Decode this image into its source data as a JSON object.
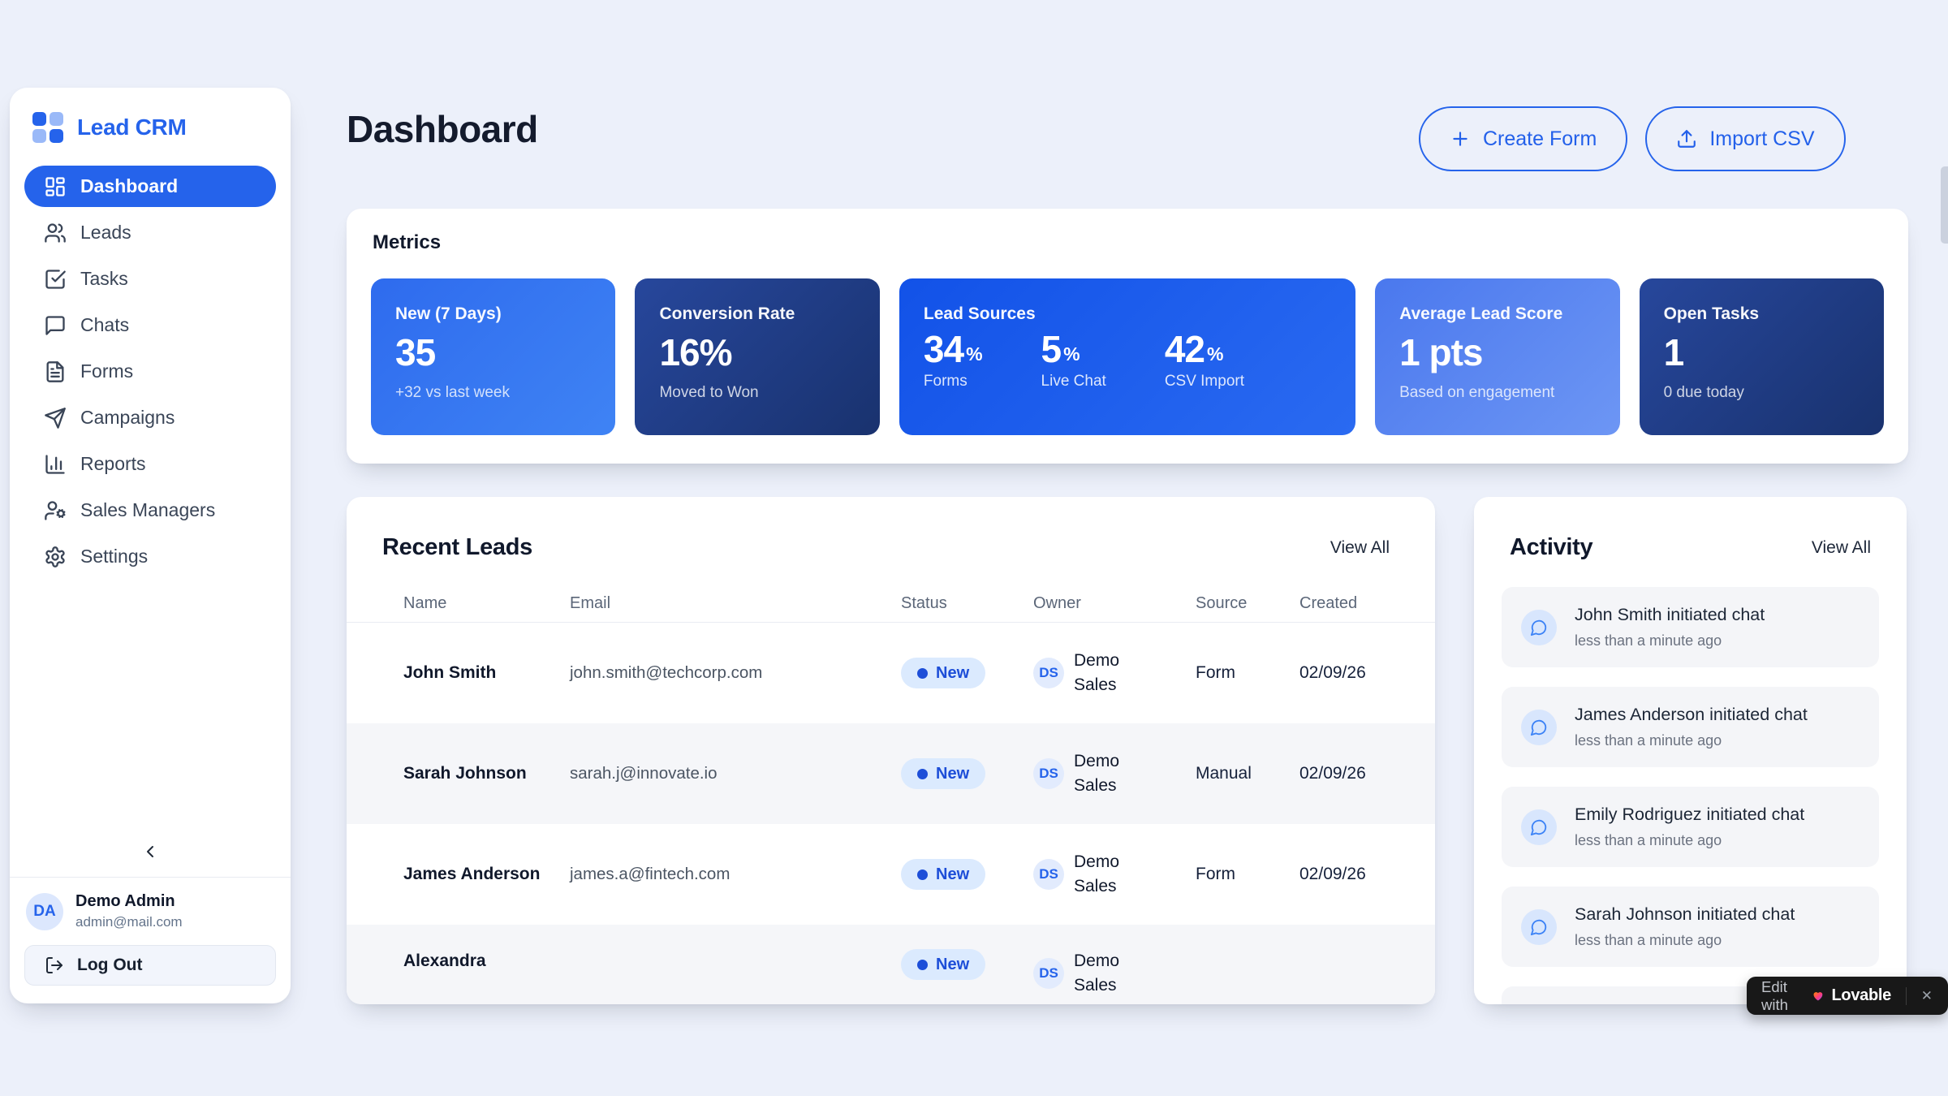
{
  "app": {
    "title": "Lead CRM"
  },
  "colors": {
    "accent": "#2563eb",
    "active_nav": "#2563eb",
    "status_badge_bg": "#dbeafe",
    "status_badge_text": "#1d4ed8"
  },
  "sidebar": {
    "brand": "Lead CRM",
    "nav": [
      {
        "label": "Dashboard",
        "icon": "dashboard",
        "active": true
      },
      {
        "label": "Leads",
        "icon": "leads"
      },
      {
        "label": "Tasks",
        "icon": "tasks"
      },
      {
        "label": "Chats",
        "icon": "chats"
      },
      {
        "label": "Forms",
        "icon": "forms"
      },
      {
        "label": "Campaigns",
        "icon": "campaigns"
      },
      {
        "label": "Reports",
        "icon": "reports"
      },
      {
        "label": "Sales Managers",
        "icon": "sales-managers"
      },
      {
        "label": "Settings",
        "icon": "settings"
      }
    ],
    "user": {
      "initials": "DA",
      "name": "Demo Admin",
      "email": "admin@mail.com"
    },
    "logout_label": "Log Out"
  },
  "header": {
    "title": "Dashboard",
    "create_form_label": "Create Form",
    "import_csv_label": "Import CSV"
  },
  "metrics": {
    "title": "Metrics",
    "tiles": [
      {
        "variant": "bright",
        "title": "New (7 Days)",
        "value": "35",
        "subtext": "+32 vs last week"
      },
      {
        "variant": "dark",
        "title": "Conversion Rate",
        "value": "16%",
        "subtext": "Moved to Won"
      },
      {
        "variant": "vivid",
        "title": "Lead Sources",
        "stats": [
          {
            "value": "34",
            "unit": "%",
            "label": "Forms"
          },
          {
            "value": "5",
            "unit": "%",
            "label": "Live Chat"
          },
          {
            "value": "42",
            "unit": "%",
            "label": "CSV Import"
          }
        ]
      },
      {
        "variant": "light",
        "title": "Average Lead Score",
        "value": "1 pts",
        "subtext": "Based on engagement"
      },
      {
        "variant": "dark",
        "title": "Open Tasks",
        "value": "1",
        "subtext": "0 due today"
      }
    ]
  },
  "leads": {
    "title": "Recent Leads",
    "view_all": "View All",
    "columns": [
      "Name",
      "Email",
      "Status",
      "Owner",
      "Source",
      "Created"
    ],
    "rows": [
      {
        "name": "John Smith",
        "email": "john.smith@techcorp.com",
        "status": "New",
        "owner_initials": "DS",
        "owner": "Demo Sales",
        "source": "Form",
        "created": "02/09/26"
      },
      {
        "name": "Sarah Johnson",
        "email": "sarah.j@innovate.io",
        "status": "New",
        "owner_initials": "DS",
        "owner": "Demo Sales",
        "source": "Manual",
        "created": "02/09/26",
        "striped": true
      },
      {
        "name": "James Anderson",
        "email": "james.a@fintech.com",
        "status": "New",
        "owner_initials": "DS",
        "owner": "Demo Sales",
        "source": "Form",
        "created": "02/09/26"
      },
      {
        "name": "Alexandra",
        "email": "",
        "status": "New",
        "owner_initials": "DS",
        "owner": "Demo Sales",
        "source": "",
        "created": "",
        "striped": true,
        "partial": true
      }
    ]
  },
  "activity": {
    "title": "Activity",
    "view_all": "View All",
    "items": [
      {
        "text": "John Smith initiated chat",
        "time": "less than a minute ago"
      },
      {
        "text": "James Anderson initiated chat",
        "time": "less than a minute ago"
      },
      {
        "text": "Emily Rodriguez initiated chat",
        "time": "less than a minute ago"
      },
      {
        "text": "Sarah Johnson initiated chat",
        "time": "less than a minute ago"
      }
    ]
  },
  "lovable_badge": {
    "prefix": "Edit with",
    "brand": "Lovable",
    "close": "✕"
  }
}
